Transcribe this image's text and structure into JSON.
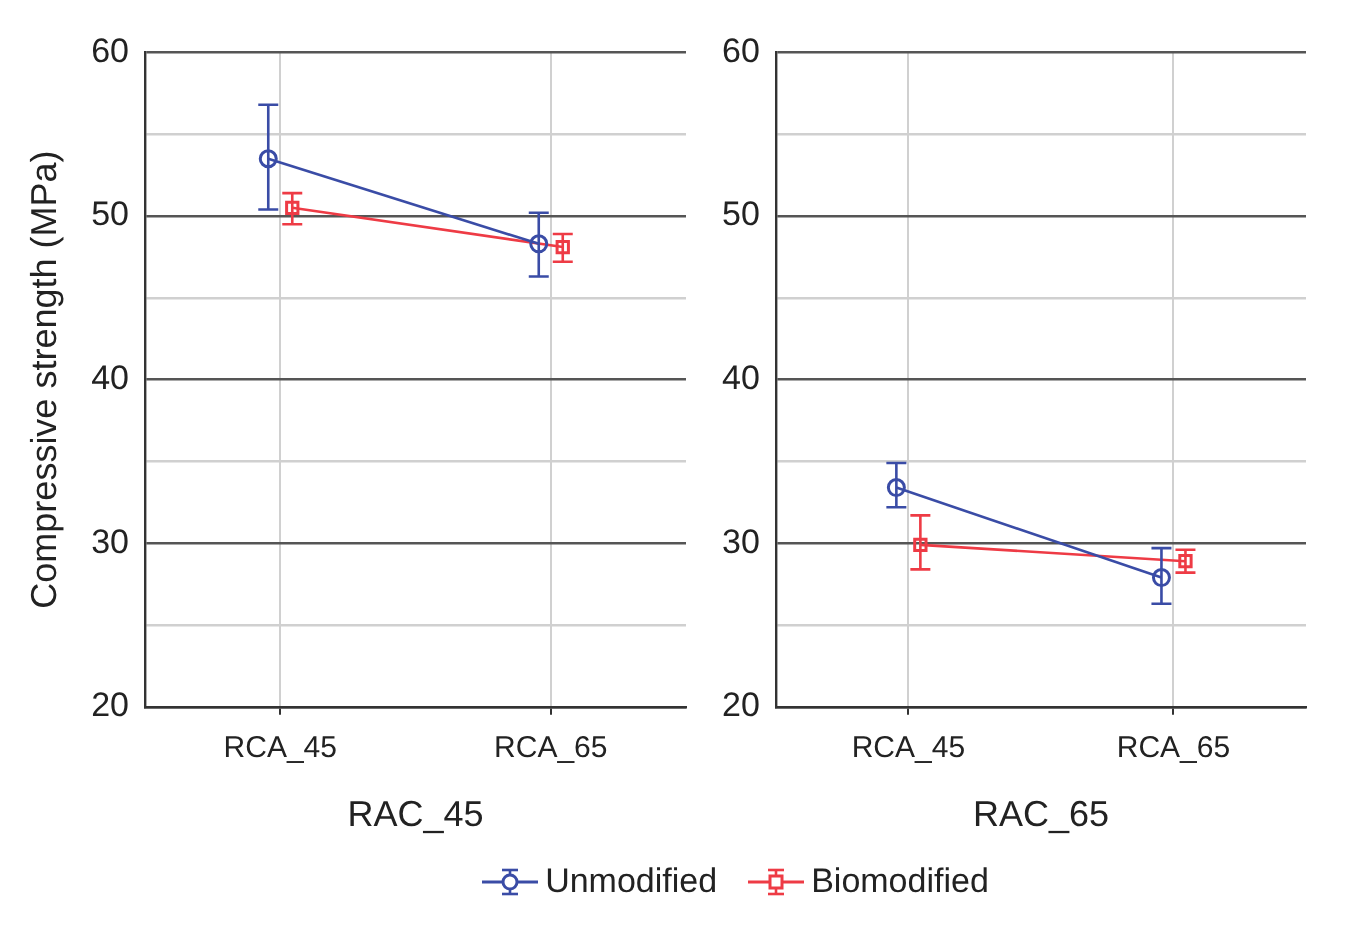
{
  "chart_data": [
    {
      "type": "line",
      "xlabel": "RAC_45",
      "ylabel": "Compressive strength (MPa)",
      "categories": [
        "RCA_45",
        "RCA_65"
      ],
      "ylim": [
        20,
        60
      ],
      "yticks": [
        20,
        {
          "value": 25,
          "label": null
        },
        30,
        {
          "value": 35,
          "label": null
        },
        40,
        {
          "value": 45,
          "label": null
        },
        50,
        {
          "value": 55,
          "label": null
        },
        60
      ],
      "grid": true,
      "legend": "bottom",
      "series": [
        {
          "name": "Unmodified",
          "color": "#3a4ca6",
          "marker": "circle",
          "values": [
            53.5,
            48.3
          ],
          "errors": [
            [
              50.4,
              56.8
            ],
            [
              46.3,
              50.2
            ]
          ]
        },
        {
          "name": "Biomodified",
          "color": "#ee3b45",
          "marker": "square",
          "values": [
            50.5,
            48.1
          ],
          "errors": [
            [
              49.5,
              51.4
            ],
            [
              47.2,
              48.9
            ]
          ]
        }
      ]
    },
    {
      "type": "line",
      "xlabel": "RAC_65",
      "categories": [
        "RCA_45",
        "RCA_65"
      ],
      "ylim": [
        20,
        60
      ],
      "yticks": [
        20,
        {
          "value": 25,
          "label": null
        },
        30,
        {
          "value": 35,
          "label": null
        },
        40,
        {
          "value": 45,
          "label": null
        },
        50,
        {
          "value": 55,
          "label": null
        },
        60
      ],
      "grid": true,
      "series": [
        {
          "color": "#3a4ca6",
          "marker": "circle",
          "values": [
            33.4,
            27.9
          ],
          "errors": [
            [
              32.2,
              34.9
            ],
            [
              26.3,
              29.7
            ]
          ]
        },
        {
          "color": "#ee3b45",
          "marker": "square",
          "values": [
            29.9,
            28.9
          ],
          "errors": [
            [
              28.4,
              31.7
            ],
            [
              28.2,
              29.6
            ]
          ]
        }
      ]
    }
  ]
}
